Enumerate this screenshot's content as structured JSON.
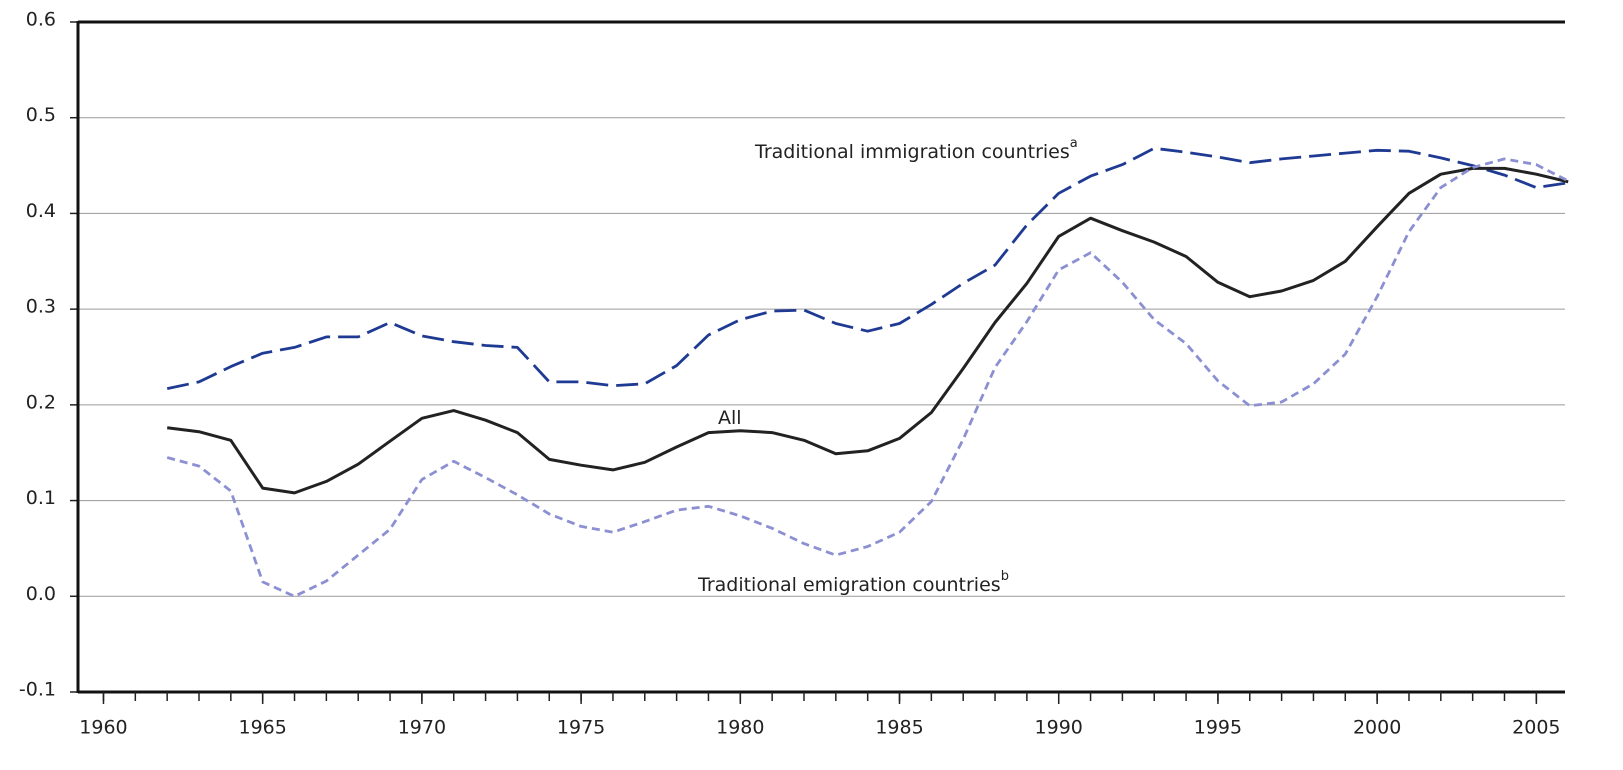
{
  "chart_data": {
    "type": "line",
    "x": [
      1962,
      1963,
      1964,
      1965,
      1966,
      1967,
      1968,
      1969,
      1970,
      1971,
      1972,
      1973,
      1974,
      1975,
      1976,
      1977,
      1978,
      1979,
      1980,
      1981,
      1982,
      1983,
      1984,
      1985,
      1986,
      1987,
      1988,
      1989,
      1990,
      1991,
      1992,
      1993,
      1994,
      1995,
      1996,
      1997,
      1998,
      1999,
      2000,
      2001,
      2002,
      2003,
      2004,
      2005,
      2006
    ],
    "series": [
      {
        "name": "Traditional immigration countries",
        "color": "#1f3a93",
        "dash": "22 8",
        "values": [
          0.217,
          0.224,
          0.24,
          0.254,
          0.26,
          0.271,
          0.271,
          0.286,
          0.272,
          0.266,
          0.262,
          0.26,
          0.224,
          0.224,
          0.22,
          0.222,
          0.241,
          0.273,
          0.289,
          0.298,
          0.299,
          0.285,
          0.277,
          0.285,
          0.305,
          0.327,
          0.346,
          0.388,
          0.421,
          0.439,
          0.451,
          0.468,
          0.464,
          0.459,
          0.453,
          0.457,
          0.46,
          0.463,
          0.466,
          0.465,
          0.458,
          0.45,
          0.44,
          0.427,
          0.432
        ]
      },
      {
        "name": "All",
        "color": "#222222",
        "dash": "none",
        "values": [
          0.176,
          0.172,
          0.163,
          0.113,
          0.108,
          0.12,
          0.138,
          0.162,
          0.186,
          0.194,
          0.184,
          0.171,
          0.143,
          0.137,
          0.132,
          0.14,
          0.156,
          0.171,
          0.173,
          0.171,
          0.163,
          0.149,
          0.152,
          0.165,
          0.192,
          0.238,
          0.286,
          0.327,
          0.376,
          0.395,
          0.382,
          0.37,
          0.355,
          0.328,
          0.313,
          0.319,
          0.33,
          0.35,
          0.386,
          0.421,
          0.441,
          0.447,
          0.447,
          0.441,
          0.433
        ]
      },
      {
        "name": "Traditional emigration countries",
        "color": "#8c90d2",
        "dash": "8 5",
        "values": [
          0.145,
          0.136,
          0.11,
          0.015,
          0.0,
          0.016,
          0.043,
          0.07,
          0.122,
          0.141,
          0.124,
          0.106,
          0.086,
          0.073,
          0.067,
          0.078,
          0.09,
          0.094,
          0.084,
          0.071,
          0.055,
          0.043,
          0.052,
          0.067,
          0.099,
          0.164,
          0.239,
          0.287,
          0.341,
          0.359,
          0.328,
          0.289,
          0.264,
          0.225,
          0.199,
          0.203,
          0.222,
          0.253,
          0.313,
          0.381,
          0.427,
          0.448,
          0.457,
          0.451,
          0.434
        ]
      }
    ],
    "annotations": [
      {
        "text": "Traditional immigration countries",
        "note": "a"
      },
      {
        "text": "All"
      },
      {
        "text": "Traditional emigration countries",
        "note": "b"
      }
    ],
    "xlim": [
      1959.2,
      2005.9
    ],
    "xticks": [
      1960,
      1965,
      1970,
      1975,
      1980,
      1985,
      1990,
      1995,
      2000,
      2005
    ],
    "xminorticks": [
      1960,
      1961,
      1962,
      1963,
      1964,
      1965,
      1966,
      1967,
      1968,
      1969,
      1970,
      1971,
      1972,
      1973,
      1974,
      1975,
      1976,
      1977,
      1978,
      1979,
      1980,
      1981,
      1982,
      1983,
      1984,
      1985,
      1986,
      1987,
      1988,
      1989,
      1990,
      1991,
      1992,
      1993,
      1994,
      1995,
      1996,
      1997,
      1998,
      1999,
      2000,
      2001,
      2002,
      2003,
      2004,
      2005
    ],
    "ylim": [
      -0.1,
      0.6
    ],
    "yticks": [
      -0.1,
      {
        "value": 0,
        "label": "0.0"
      },
      0.1,
      0.2,
      0.3,
      0.4,
      0.5,
      0.6
    ],
    "grid": true
  }
}
